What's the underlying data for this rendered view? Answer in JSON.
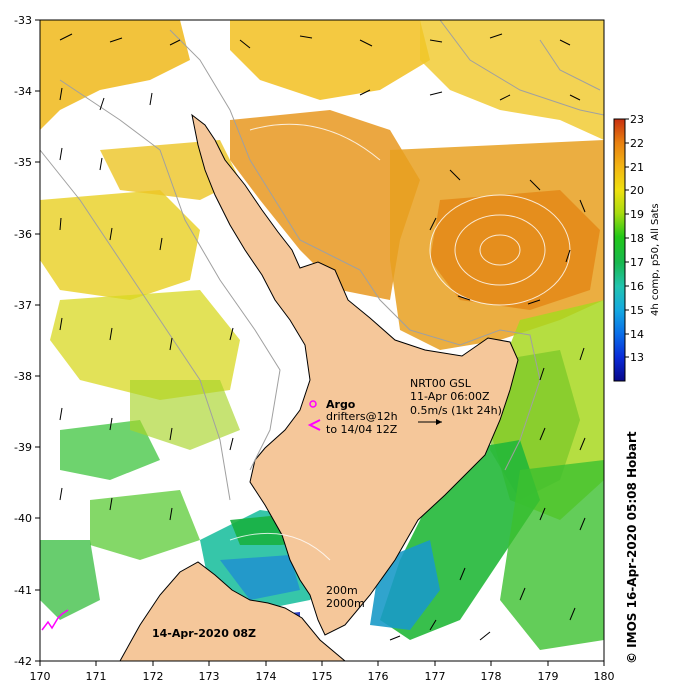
{
  "map": {
    "lon_range": [
      170,
      180
    ],
    "lat_range": [
      -42,
      -33
    ],
    "lon_ticks": [
      "170",
      "171",
      "172",
      "173",
      "174",
      "175",
      "176",
      "177",
      "178",
      "179",
      "180"
    ],
    "lat_ticks": [
      "-33",
      "-34",
      "-35",
      "-36",
      "-37",
      "-38",
      "-39",
      "-40",
      "-41",
      "-42"
    ],
    "date_label": "14-Apr-2020 08Z",
    "side_credit": "© IMOS 16-Apr-2020 05:08 Hobart",
    "land_color": "#f5c79a",
    "argo": {
      "title": "Argo",
      "line2": "drifters@12h",
      "line3": "to 14/04 12Z",
      "marker_color": "#ff00ff"
    },
    "current_legend": {
      "line1": "NRT00 GSL",
      "line2": "11-Apr 06:00Z",
      "line3": "0.5m/s (1kt 24h)"
    },
    "isobaths": {
      "line1": "200m",
      "line2": "2000m"
    }
  },
  "colorbar": {
    "title": "4h comp, p50, All Sats",
    "min": 12,
    "max": 23,
    "tick_labels": [
      "13",
      "14",
      "15",
      "16",
      "17",
      "18",
      "19",
      "20",
      "21",
      "22",
      "23"
    ],
    "colors": [
      "#08088a",
      "#0a2bd8",
      "#0a6ee8",
      "#14a8e0",
      "#22c4b0",
      "#18b850",
      "#22c818",
      "#a8dc10",
      "#f0e010",
      "#f2b414",
      "#e88010",
      "#c83010"
    ]
  }
}
